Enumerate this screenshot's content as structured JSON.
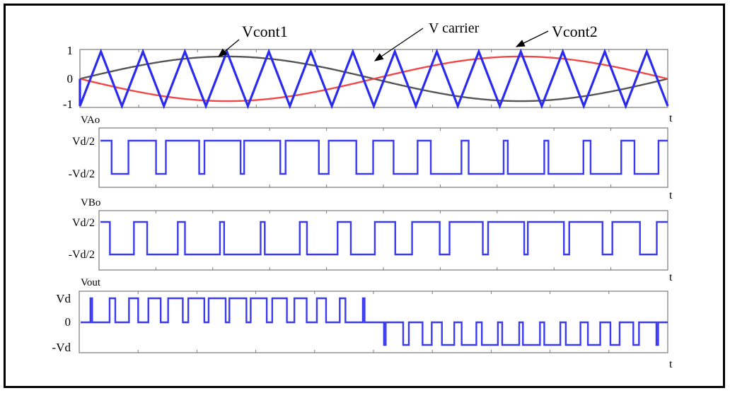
{
  "colors": {
    "carrier": "#2b2bf0",
    "vcont1": "#555555",
    "vcont2": "#f04848",
    "square": "#3a3af2",
    "axis_box": "#7a7a7a"
  },
  "annotations": [
    {
      "id": "vcont1",
      "text": "Vcont1"
    },
    {
      "id": "vcarrier",
      "text": "V carrier"
    },
    {
      "id": "vcont2",
      "text": "Vcont2"
    }
  ],
  "chart_data": [
    {
      "type": "line",
      "id": "control",
      "ylabel": "",
      "xlabel": "t",
      "yticks": [
        "1",
        "0",
        "-1"
      ],
      "ylim": [
        -1,
        1
      ],
      "carrier_cycles": 14,
      "series": [
        {
          "name": "V carrier",
          "shape": "triangle",
          "amplitude": 1,
          "cycles": 14
        },
        {
          "name": "Vcont1",
          "shape": "sine",
          "amplitude": 0.82,
          "phase_deg": 0
        },
        {
          "name": "Vcont2",
          "shape": "sine",
          "amplitude": 0.82,
          "phase_deg": 180
        }
      ]
    },
    {
      "type": "line",
      "id": "vao",
      "ylabel": "VAo",
      "xlabel": "t",
      "yticks": [
        "Vd/2",
        "-Vd/2"
      ],
      "levels": [
        1,
        -1
      ],
      "derived_from": "Vcont1 vs V carrier"
    },
    {
      "type": "line",
      "id": "vbo",
      "ylabel": "VBo",
      "xlabel": "t",
      "yticks": [
        "Vd/2",
        "-Vd/2"
      ],
      "levels": [
        1,
        -1
      ],
      "derived_from": "Vcont2 vs V carrier"
    },
    {
      "type": "line",
      "id": "vout",
      "ylabel": "Vout",
      "xlabel": "t",
      "yticks": [
        "Vd",
        "0",
        "-Vd"
      ],
      "levels": [
        1,
        0,
        -1
      ],
      "derived_from": "VAo - VBo"
    }
  ]
}
